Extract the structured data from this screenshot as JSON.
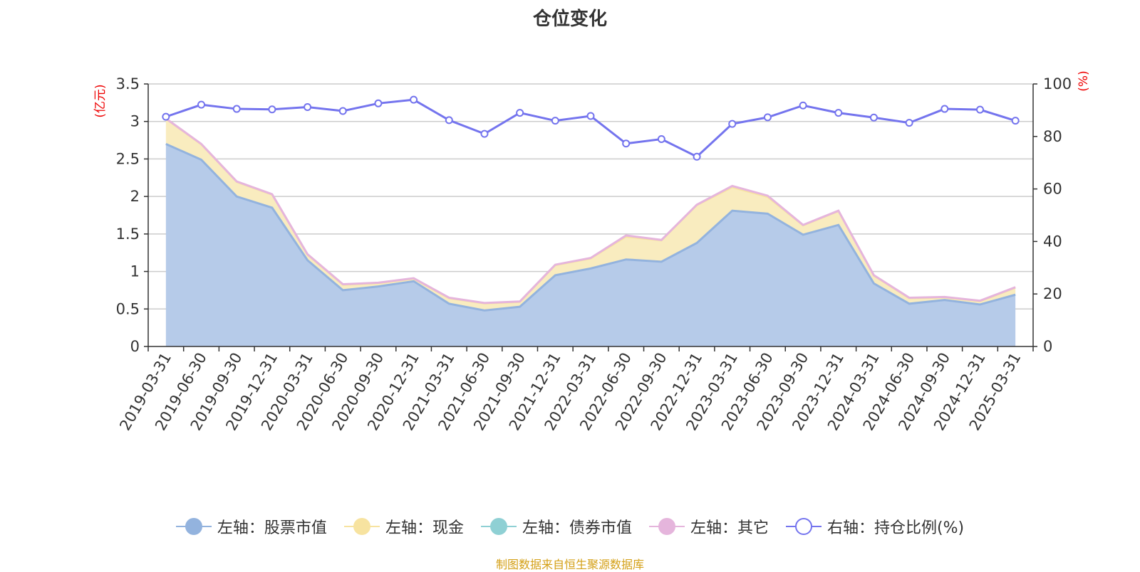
{
  "chart_data": {
    "type": "area",
    "title": "仓位变化",
    "y_left_label": "(亿元)",
    "y_right_label": "(%)",
    "y_left_range": [
      0,
      3.5
    ],
    "y_left_ticks": [
      "0",
      "0.5",
      "1",
      "1.5",
      "2",
      "2.5",
      "3",
      "3.5"
    ],
    "y_right_range": [
      0,
      100
    ],
    "y_right_ticks": [
      "0",
      "20",
      "40",
      "60",
      "80",
      "100"
    ],
    "categories": [
      "2019-03-31",
      "2019-06-30",
      "2019-09-30",
      "2019-12-31",
      "2020-03-31",
      "2020-06-30",
      "2020-09-30",
      "2020-12-31",
      "2021-03-31",
      "2021-06-30",
      "2021-09-30",
      "2021-12-31",
      "2022-03-31",
      "2022-06-30",
      "2022-09-30",
      "2022-12-31",
      "2023-03-31",
      "2023-06-30",
      "2023-09-30",
      "2023-12-31",
      "2024-03-31",
      "2024-06-30",
      "2024-09-30",
      "2024-12-31",
      "2025-03-31"
    ],
    "series": [
      {
        "name": "左轴：股票市值",
        "axis": "left",
        "values": [
          2.7,
          2.49,
          2.0,
          1.85,
          1.15,
          0.75,
          0.8,
          0.87,
          0.57,
          0.48,
          0.53,
          0.95,
          1.04,
          1.16,
          1.13,
          1.38,
          1.81,
          1.77,
          1.49,
          1.62,
          0.84,
          0.57,
          0.62,
          0.56,
          0.69
        ]
      },
      {
        "name": "左轴：现金",
        "axis": "left",
        "values": [
          0.33,
          0.2,
          0.19,
          0.17,
          0.07,
          0.07,
          0.04,
          0.03,
          0.07,
          0.09,
          0.06,
          0.13,
          0.13,
          0.3,
          0.28,
          0.5,
          0.31,
          0.22,
          0.12,
          0.18,
          0.1,
          0.07,
          0.03,
          0.04,
          0.09
        ]
      },
      {
        "name": "左轴：债券市值",
        "axis": "left",
        "values": [
          0,
          0,
          0,
          0,
          0,
          0,
          0,
          0,
          0,
          0,
          0,
          0,
          0,
          0,
          0,
          0,
          0,
          0,
          0,
          0,
          0,
          0,
          0,
          0,
          0
        ]
      },
      {
        "name": "左轴：其它",
        "axis": "left",
        "values": [
          0.01,
          0.01,
          0.01,
          0.01,
          0.01,
          0.01,
          0.01,
          0.01,
          0.01,
          0.01,
          0.01,
          0.01,
          0.01,
          0.02,
          0.01,
          0.01,
          0.02,
          0.02,
          0.01,
          0.01,
          0.01,
          0.01,
          0.01,
          0.01,
          0.01
        ]
      },
      {
        "name": "右轴：持仓比例(%)",
        "axis": "right",
        "values": [
          87.5,
          92.1,
          90.5,
          90.3,
          91.2,
          89.7,
          92.6,
          94.0,
          86.2,
          81.0,
          89.0,
          86.0,
          87.8,
          77.3,
          79.0,
          72.3,
          84.8,
          87.3,
          91.8,
          89.0,
          87.2,
          85.2,
          90.5,
          90.2,
          86.0
        ]
      }
    ],
    "colors": {
      "stock_fill": "#b6cbe9",
      "stock_line": "#93b3de",
      "cash_fill": "#f9ecbf",
      "cash_line": "#f7e3a0",
      "bond_color": "#8fd0d4",
      "other_line": "#e5b5dc",
      "ratio_line": "#7474ee",
      "axis_label_red": "#ee0000",
      "grid": "#cccccc",
      "source_text": "#d4a017"
    },
    "legend_position": "bottom-center"
  },
  "source": "制图数据来自恒生聚源数据库"
}
